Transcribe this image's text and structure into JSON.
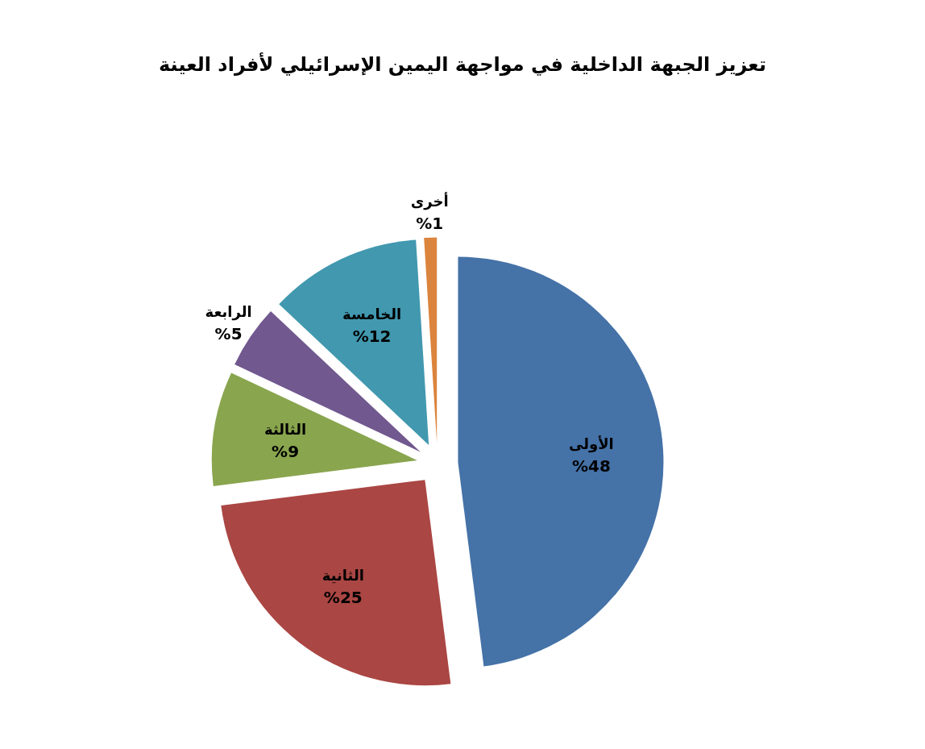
{
  "chart_data": {
    "type": "pie",
    "title": "تعزيز الجبهة الداخلية في مواجهة اليمين الإسرائيلي لأفراد العينة",
    "categories": [
      "الأولى",
      "الثانية",
      "الثالثة",
      "الرابعة",
      "الخامسة",
      "أخرى"
    ],
    "values": [
      48,
      25,
      9,
      5,
      12,
      1
    ],
    "colors": [
      "#4572a7",
      "#aa4643",
      "#89a54e",
      "#71588f",
      "#4198af",
      "#db843d"
    ],
    "value_labels": [
      "%48",
      "%25",
      "%9",
      "%5",
      "%12",
      "%1"
    ]
  }
}
